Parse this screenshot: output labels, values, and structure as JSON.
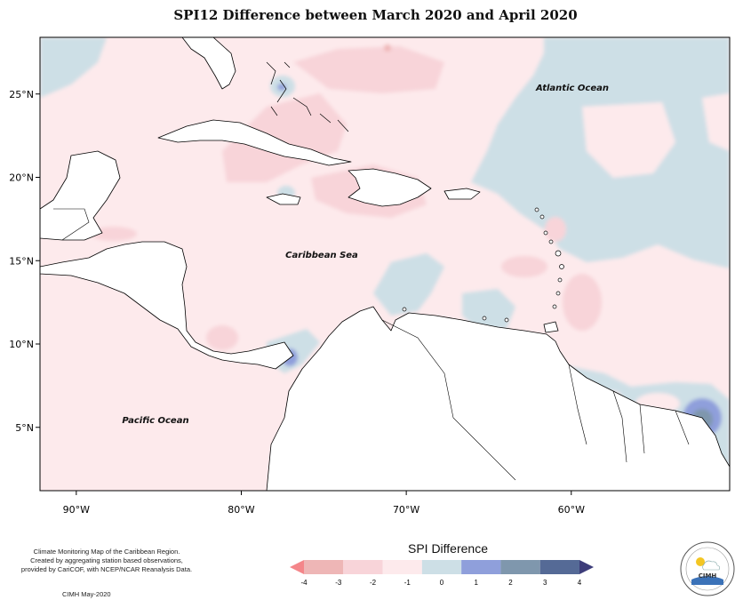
{
  "title": "SPI12 Difference between March 2020 and April 2020",
  "axes": {
    "lon_ticks": [
      -90,
      -80,
      -70,
      -60
    ],
    "lon_labels": [
      "90°W",
      "80°W",
      "70°W",
      "60°W"
    ],
    "lat_ticks": [
      5,
      10,
      15,
      20,
      25
    ],
    "lat_labels": [
      "5°N",
      "10°N",
      "15°N",
      "20°N",
      "25°N"
    ],
    "lon_range": [
      -92.2,
      -50.4
    ],
    "lat_range": [
      1.2,
      28.4
    ]
  },
  "labels": {
    "atlantic": "Atlantic Ocean",
    "caribbean": "Caribbean Sea",
    "pacific": "Pacific Ocean"
  },
  "legend": {
    "title": "SPI Difference",
    "ticks": [
      "-4",
      "-3",
      "-2",
      "-1",
      "0",
      "1",
      "2",
      "3",
      "4"
    ],
    "colors": [
      "#f4868a",
      "#eeb6b6",
      "#f8d4d9",
      "#fdeaec",
      "#cddfe6",
      "#8f9fdb",
      "#7f97ad",
      "#556a96",
      "#3d3d7a"
    ]
  },
  "footer": {
    "line1": "Climate Monitoring Map of the Caribbean Region.",
    "line2": "Created by aggregating station based observations,",
    "line3": "provided by CariCOF, with NCEP/NCAR Reanalysis Data.",
    "date": "CIMH May-2020"
  },
  "logo": {
    "text": "CIMH"
  }
}
